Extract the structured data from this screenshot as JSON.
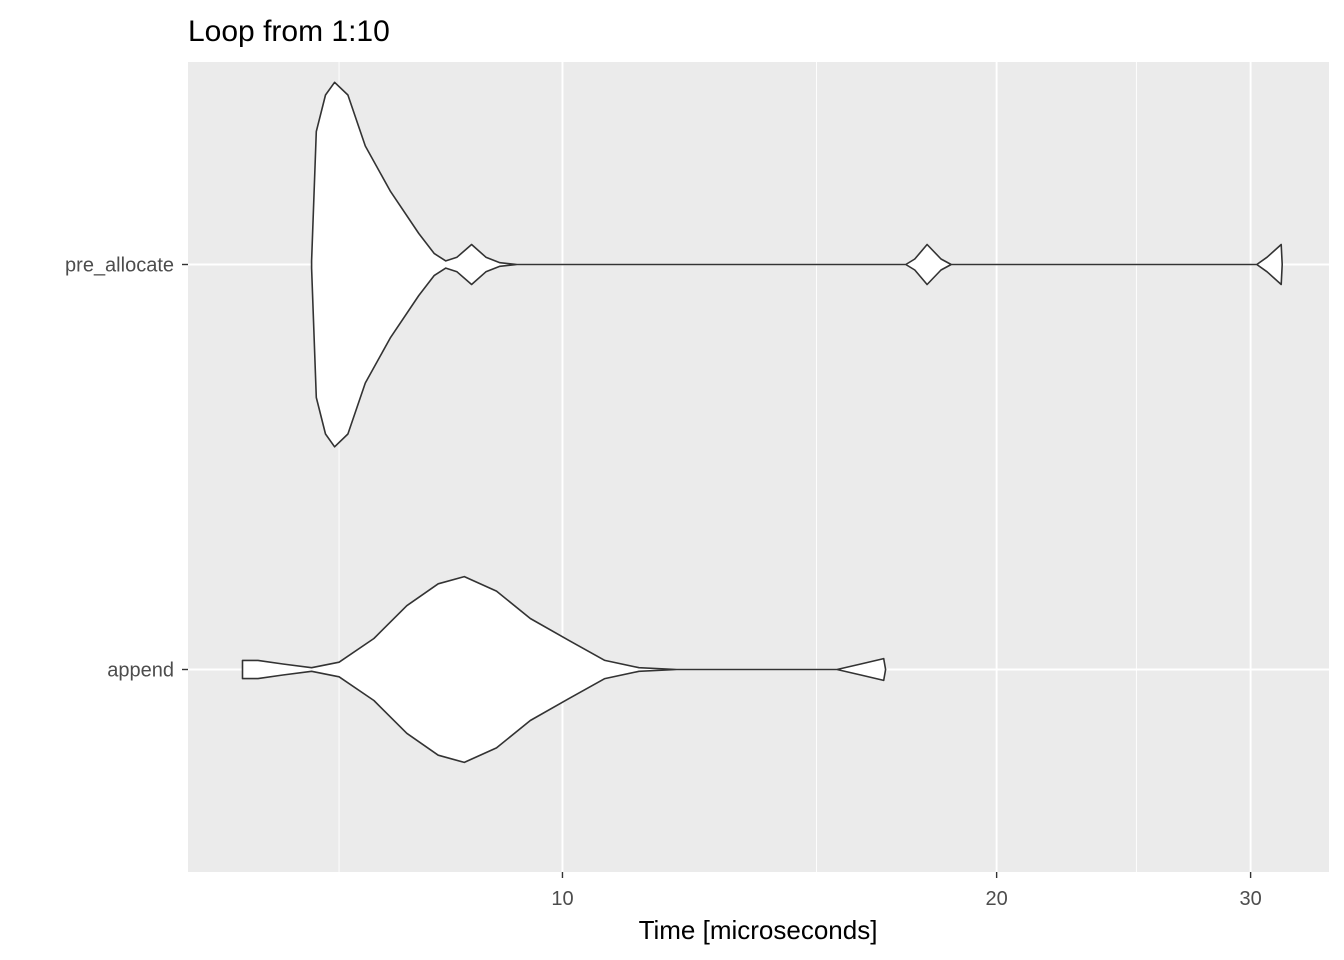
{
  "chart_data": {
    "type": "violin",
    "title": "Loop from 1:10",
    "xlabel": "Time [microseconds]",
    "ylabel": "",
    "x_scale": "log",
    "xlim": [
      5.5,
      34
    ],
    "x_ticks": [
      10,
      20,
      30
    ],
    "x_tick_labels": [
      "10",
      "20",
      "30"
    ],
    "x_minor_ticks": [
      7,
      15,
      25
    ],
    "categories": [
      "pre_allocate",
      "append"
    ],
    "grid": true,
    "panel_background": "#ebebeb",
    "grid_color": "#ffffff",
    "violin_fill": "#ffffff",
    "violin_outline": "#333333",
    "series": [
      {
        "name": "pre_allocate",
        "profile": [
          [
            6.7,
            0.02
          ],
          [
            6.75,
            0.73
          ],
          [
            6.85,
            0.93
          ],
          [
            6.95,
            1.0
          ],
          [
            7.1,
            0.93
          ],
          [
            7.3,
            0.65
          ],
          [
            7.6,
            0.4
          ],
          [
            7.95,
            0.17
          ],
          [
            8.15,
            0.06
          ],
          [
            8.3,
            0.02
          ],
          [
            8.45,
            0.04
          ],
          [
            8.65,
            0.11
          ],
          [
            8.85,
            0.04
          ],
          [
            9.05,
            0.01
          ],
          [
            9.3,
            0.0
          ],
          [
            17.3,
            0.0
          ],
          [
            17.55,
            0.03
          ],
          [
            17.9,
            0.11
          ],
          [
            18.3,
            0.03
          ],
          [
            18.6,
            0.0
          ],
          [
            30.3,
            0.0
          ],
          [
            30.8,
            0.04
          ],
          [
            31.5,
            0.11
          ],
          [
            31.55,
            0.0
          ]
        ]
      },
      {
        "name": "append",
        "profile": [
          [
            6.0,
            0.05
          ],
          [
            6.15,
            0.05
          ],
          [
            6.4,
            0.03
          ],
          [
            6.7,
            0.01
          ],
          [
            7.0,
            0.04
          ],
          [
            7.4,
            0.17
          ],
          [
            7.8,
            0.35
          ],
          [
            8.2,
            0.47
          ],
          [
            8.55,
            0.51
          ],
          [
            9.0,
            0.43
          ],
          [
            9.5,
            0.28
          ],
          [
            10.1,
            0.16
          ],
          [
            10.7,
            0.05
          ],
          [
            11.3,
            0.01
          ],
          [
            12.0,
            0.0
          ],
          [
            15.5,
            0.0
          ],
          [
            16.1,
            0.03
          ],
          [
            16.7,
            0.06
          ],
          [
            16.75,
            0.0
          ]
        ]
      }
    ]
  }
}
